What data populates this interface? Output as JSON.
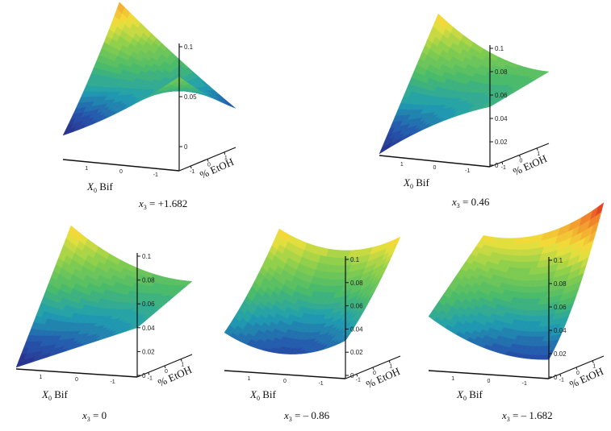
{
  "chart_data": [
    {
      "type": "surface",
      "caption": {
        "var": "x",
        "sub": "3",
        "value": " = +1.682"
      },
      "x_label": {
        "var": "X",
        "sub": "0",
        "text": " Bif"
      },
      "y_label": "% EtOH",
      "x_values": [
        1.682,
        0,
        -1.682
      ],
      "y_values": [
        -1.682,
        0,
        1.682
      ],
      "x_ticks": [
        "1",
        "0",
        "-1"
      ],
      "y_ticks": [
        "-1",
        "0",
        "1"
      ],
      "z_ticks": [
        0,
        0.05,
        0.1
      ],
      "z_tick_labels": [
        "0",
        "0.05",
        "0.1"
      ],
      "z_grid": [
        [
          0.0,
          0.03,
          0.07
        ],
        [
          0.05,
          0.045,
          0.04
        ],
        [
          0.11,
          0.06,
          0.015
        ]
      ]
    },
    {
      "type": "surface",
      "caption": {
        "var": "x",
        "sub": "3",
        "value": " = 0.46"
      },
      "x_label": {
        "var": "X",
        "sub": "0",
        "text": " Bif"
      },
      "y_label": "% EtOH",
      "x_values": [
        1.682,
        0,
        -1.682
      ],
      "y_values": [
        -1.682,
        0,
        1.682
      ],
      "x_ticks": [
        "1",
        "0",
        "-1"
      ],
      "y_ticks": [
        "-1",
        "0",
        "1"
      ],
      "z_ticks": [
        0,
        0.02,
        0.04,
        0.06,
        0.08,
        0.1
      ],
      "z_tick_labels": [
        "0",
        "0.02",
        "0.04",
        "0.06",
        "0.08",
        "0.1"
      ],
      "z_grid": [
        [
          0.0,
          0.03,
          0.05
        ],
        [
          0.05,
          0.045,
          0.055
        ],
        [
          0.1,
          0.07,
          0.06
        ]
      ]
    },
    {
      "type": "surface",
      "caption": {
        "var": "x",
        "sub": "3",
        "value": " = 0"
      },
      "x_label": {
        "var": "X",
        "sub": "0",
        "text": " Bif"
      },
      "y_label": "% EtOH",
      "x_values": [
        1.682,
        0,
        -1.682
      ],
      "y_values": [
        -1.682,
        0,
        1.682
      ],
      "x_ticks": [
        "1",
        "0",
        "-1"
      ],
      "y_ticks": [
        "-1",
        "0",
        "1"
      ],
      "z_ticks": [
        0,
        0.02,
        0.04,
        0.06,
        0.08,
        0.1
      ],
      "z_tick_labels": [
        "0",
        "0.02",
        "0.04",
        "0.06",
        "0.08",
        "0.1"
      ],
      "z_grid": [
        [
          0.0,
          0.02,
          0.04
        ],
        [
          0.05,
          0.04,
          0.05
        ],
        [
          0.1,
          0.07,
          0.06
        ]
      ]
    },
    {
      "type": "surface",
      "caption": {
        "var": "x",
        "sub": "3",
        "value": " = – 0.86"
      },
      "x_label": {
        "var": "X",
        "sub": "0",
        "text": " Bif"
      },
      "y_label": "% EtOH",
      "x_values": [
        1.682,
        0,
        -1.682
      ],
      "y_values": [
        -1.682,
        0,
        1.682
      ],
      "x_ticks": [
        "1",
        "0",
        "-1"
      ],
      "y_ticks": [
        "-1",
        "0",
        "1"
      ],
      "z_ticks": [
        0,
        0.02,
        0.04,
        0.06,
        0.08,
        0.1
      ],
      "z_tick_labels": [
        "0",
        "0.02",
        "0.04",
        "0.06",
        "0.08",
        "0.1"
      ],
      "z_grid": [
        [
          0.03,
          0.015,
          0.03
        ],
        [
          0.06,
          0.035,
          0.06
        ],
        [
          0.1,
          0.085,
          0.1
        ]
      ]
    },
    {
      "type": "surface",
      "caption": {
        "var": "x",
        "sub": "3",
        "value": " = – 1.682"
      },
      "x_label": {
        "var": "X",
        "sub": "0",
        "text": " Bif"
      },
      "y_label": "% EtOH",
      "x_values": [
        1.682,
        0,
        -1.682
      ],
      "y_values": [
        -1.682,
        0,
        1.682
      ],
      "x_ticks": [
        "1",
        "0",
        "-1"
      ],
      "y_ticks": [
        "-1",
        "0",
        "1"
      ],
      "z_ticks": [
        0,
        0.02,
        0.04,
        0.06,
        0.08,
        0.1
      ],
      "z_tick_labels": [
        "0",
        "0.02",
        "0.04",
        "0.06",
        "0.08",
        "0.1"
      ],
      "z_grid": [
        [
          0.045,
          0.02,
          0.015
        ],
        [
          0.07,
          0.05,
          0.06
        ],
        [
          0.095,
          0.1,
          0.13
        ]
      ]
    }
  ],
  "colormap": [
    "#2a2a86",
    "#2458ad",
    "#1f9fb0",
    "#4cbb68",
    "#8ccf4c",
    "#f2e13a",
    "#f39a2e",
    "#e0261f"
  ]
}
